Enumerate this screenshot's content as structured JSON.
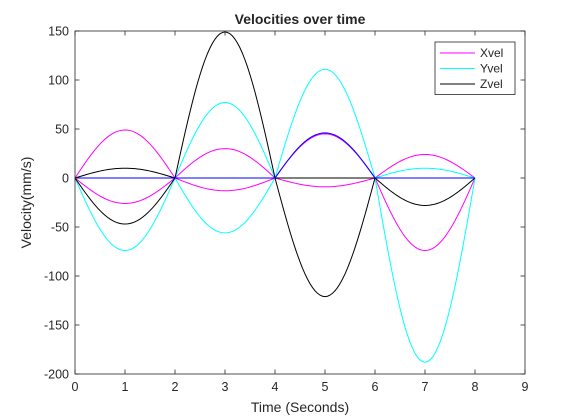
{
  "chart_data": {
    "type": "line",
    "title": "Velocities over time",
    "xlabel": "Time (Seconds)",
    "ylabel": "Velocity(mm/s)",
    "xlim": [
      0,
      9
    ],
    "ylim": [
      -200,
      150
    ],
    "xticks": [
      0,
      1,
      2,
      3,
      4,
      5,
      6,
      7,
      8,
      9
    ],
    "yticks": [
      -200,
      -150,
      -100,
      -50,
      0,
      50,
      100,
      150
    ],
    "grid": false,
    "legend": {
      "position": "top-right",
      "entries": [
        "Xvel",
        "Yvel",
        "Zvel"
      ]
    },
    "segment_shape": "half-sine",
    "segment_boundaries": [
      0,
      2,
      4,
      6,
      8
    ],
    "series": [
      {
        "name": "Xvel",
        "color": "#ff00ff",
        "group": "Xvel",
        "legend": true,
        "peaks": [
          49,
          30,
          45,
          24
        ]
      },
      {
        "color": "#ff00ff",
        "group": "Xvel",
        "legend": false,
        "peaks": [
          -26,
          -13,
          -9,
          -74
        ]
      },
      {
        "name": "Yvel",
        "color": "#00ffff",
        "group": "Yvel",
        "legend": true,
        "peaks": [
          -74,
          77,
          111,
          -188
        ]
      },
      {
        "color": "#00ffff",
        "group": "Yvel",
        "legend": false,
        "peaks": [
          0,
          -56,
          0,
          10
        ]
      },
      {
        "name": "Zvel",
        "color": "#000000",
        "group": "Zvel",
        "legend": true,
        "peaks": [
          10,
          149,
          -121,
          -28
        ]
      },
      {
        "color": "#000000",
        "group": "Zvel",
        "legend": false,
        "peaks": [
          -47,
          0,
          0,
          0
        ]
      },
      {
        "color": "#0000ff",
        "group": "extra",
        "legend": false,
        "peaks": [
          0,
          0,
          46,
          0
        ]
      }
    ]
  }
}
